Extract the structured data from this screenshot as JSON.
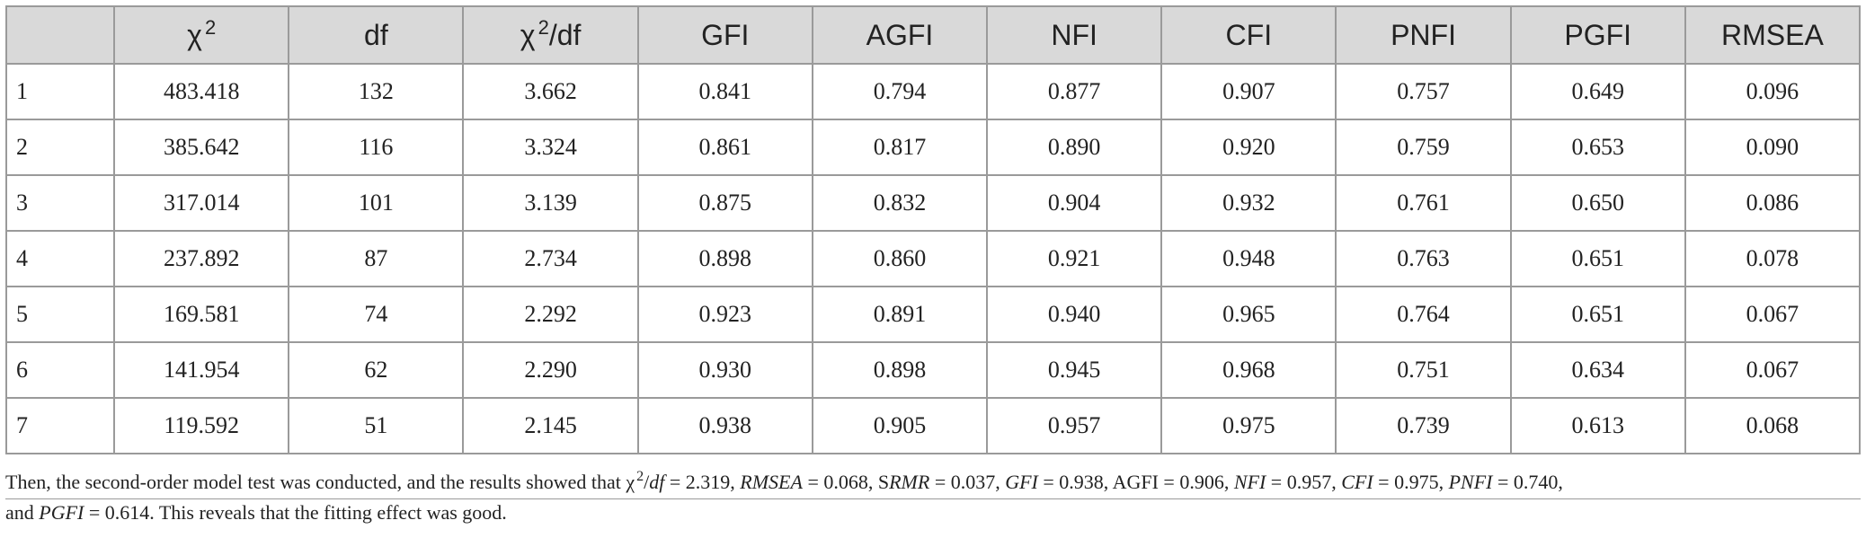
{
  "table": {
    "headers": [
      {
        "label": "χ",
        "sup": "2",
        "suffix": ""
      },
      {
        "label": "df",
        "sup": "",
        "suffix": ""
      },
      {
        "label": "χ",
        "sup": "2",
        "suffix": "/df"
      },
      {
        "label": "GFI",
        "sup": "",
        "suffix": ""
      },
      {
        "label": "AGFI",
        "sup": "",
        "suffix": ""
      },
      {
        "label": "NFI",
        "sup": "",
        "suffix": ""
      },
      {
        "label": "CFI",
        "sup": "",
        "suffix": ""
      },
      {
        "label": "PNFI",
        "sup": "",
        "suffix": ""
      },
      {
        "label": "PGFI",
        "sup": "",
        "suffix": ""
      },
      {
        "label": "RMSEA",
        "sup": "",
        "suffix": ""
      }
    ],
    "rows": [
      [
        "1",
        "483.418",
        "132",
        "3.662",
        "0.841",
        "0.794",
        "0.877",
        "0.907",
        "0.757",
        "0.649",
        "0.096"
      ],
      [
        "2",
        "385.642",
        "116",
        "3.324",
        "0.861",
        "0.817",
        "0.890",
        "0.920",
        "0.759",
        "0.653",
        "0.090"
      ],
      [
        "3",
        "317.014",
        "101",
        "3.139",
        "0.875",
        "0.832",
        "0.904",
        "0.932",
        "0.761",
        "0.650",
        "0.086"
      ],
      [
        "4",
        "237.892",
        "87",
        "2.734",
        "0.898",
        "0.860",
        "0.921",
        "0.948",
        "0.763",
        "0.651",
        "0.078"
      ],
      [
        "5",
        "169.581",
        "74",
        "2.292",
        "0.923",
        "0.891",
        "0.940",
        "0.965",
        "0.764",
        "0.651",
        "0.067"
      ],
      [
        "6",
        "141.954",
        "62",
        "2.290",
        "0.930",
        "0.898",
        "0.945",
        "0.968",
        "0.751",
        "0.634",
        "0.067"
      ],
      [
        "7",
        "119.592",
        "51",
        "2.145",
        "0.938",
        "0.905",
        "0.957",
        "0.975",
        "0.739",
        "0.613",
        "0.068"
      ]
    ]
  },
  "note": {
    "t1": "Then, the second-order model test was conducted, and the results showed that χ",
    "t1_sup": "2",
    "t2": "/",
    "t2_df": "df",
    "t3": " = 2.319, ",
    "rmsea_lbl": "RMSEA",
    "t4": " = 0.068, S",
    "srmr_lbl": "RMR",
    "t5": " = 0.037, ",
    "gfi_lbl": "GFI",
    "t6": " = 0.938, AGFI = 0.906, ",
    "nfi_lbl": "NFI",
    "t7": " = 0.957, ",
    "cfi_lbl": "CFI",
    "t8": " = 0.975, ",
    "pnfi_lbl": "PNFI",
    "t9": " = 0.740,",
    "t10": "and ",
    "pgfi_lbl": "PGFI",
    "t11": " = 0.614. This reveals that the fitting effect was good."
  }
}
